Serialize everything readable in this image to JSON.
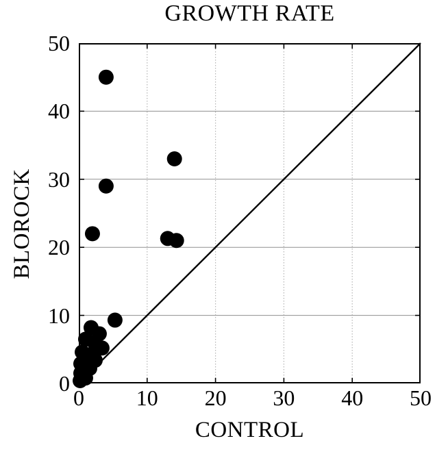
{
  "title": "GROWTH RATE",
  "axes": {
    "x_label": "CONTROL",
    "y_label": "BLOROCK",
    "x_tick_labels": [
      "0",
      "10",
      "20",
      "30",
      "40",
      "50"
    ],
    "y_tick_labels": [
      "50",
      "40",
      "30",
      "20",
      "10",
      "0"
    ]
  },
  "colors": {
    "background": "#ffffff",
    "ink": "#000000",
    "frame": "#000000",
    "diagonal_line": "#000000",
    "point_fill": "#000000",
    "grid_horizontal": "#8f8f8f",
    "grid_vertical": "#b4b4b4"
  },
  "chart_data": {
    "type": "scatter",
    "title": "GROWTH RATE",
    "xlabel": "CONTROL",
    "ylabel": "BLOROCK",
    "xlim": [
      0,
      50
    ],
    "ylim": [
      0,
      50
    ],
    "x_tick_values": [
      0,
      10,
      20,
      30,
      40,
      50
    ],
    "y_tick_values": [
      0,
      10,
      20,
      30,
      40,
      50
    ],
    "grid": true,
    "grid_style": {
      "horizontal": "solid",
      "vertical": "dotted"
    },
    "reference_line": {
      "type": "identity",
      "from": [
        0,
        0
      ],
      "to": [
        50,
        50
      ]
    },
    "marker": {
      "shape": "circle",
      "radius_px": 11,
      "color": "#000000"
    },
    "points": [
      [
        4,
        45
      ],
      [
        14,
        33
      ],
      [
        4,
        29
      ],
      [
        2,
        22
      ],
      [
        13,
        21.3
      ],
      [
        14.3,
        21
      ],
      [
        5.3,
        9.3
      ],
      [
        1.8,
        8.2
      ],
      [
        3,
        7.3
      ],
      [
        1,
        6.5
      ],
      [
        2.3,
        6
      ],
      [
        3.4,
        5.2
      ],
      [
        0.5,
        4.6
      ],
      [
        1.6,
        4.2
      ],
      [
        2.4,
        3.4
      ],
      [
        0.3,
        2.9
      ],
      [
        1.6,
        2.2
      ],
      [
        0.3,
        1.5
      ],
      [
        1,
        0.8
      ],
      [
        0.2,
        0.4
      ]
    ]
  }
}
